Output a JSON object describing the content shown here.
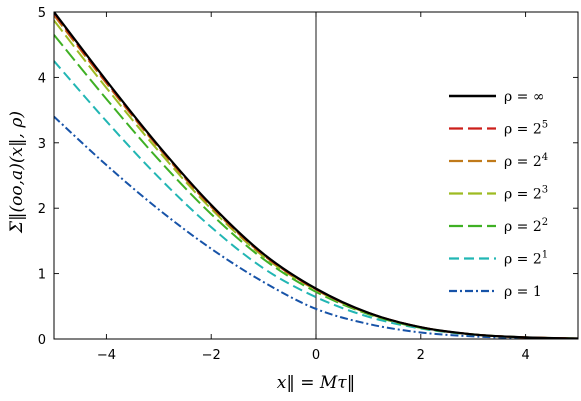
{
  "chart_data": {
    "type": "line",
    "xlabel": "x‖ = Mτ‖",
    "ylabel": "Σ‖(oo,a)(x‖, ρ)",
    "xlim": [
      -5,
      5
    ],
    "ylim": [
      0,
      5
    ],
    "xticks": [
      -4,
      -2,
      0,
      2,
      4
    ],
    "yticks": [
      0,
      1,
      2,
      3,
      4,
      5
    ],
    "grid": false,
    "legend_position": "right",
    "reference_lines": [
      {
        "orientation": "vertical",
        "x": 0
      },
      {
        "orientation": "horizontal",
        "y": 0,
        "style": "dotted"
      }
    ],
    "series": [
      {
        "name": "ρ = ∞",
        "color": "#000000",
        "dash": "solid",
        "x": [
          -5,
          -4,
          -3,
          -2,
          -1,
          0,
          1,
          2,
          3,
          4,
          5
        ],
        "y": [
          5.0,
          3.95,
          2.95,
          2.05,
          1.3,
          0.77,
          0.4,
          0.18,
          0.07,
          0.025,
          0.008
        ]
      },
      {
        "name": "ρ = 2^5",
        "color": "#cc1f1a",
        "dash": "long",
        "x": [
          -5,
          -4,
          -3,
          -2,
          -1,
          0,
          1,
          2,
          3,
          4,
          5
        ],
        "y": [
          4.98,
          3.93,
          2.94,
          2.04,
          1.29,
          0.76,
          0.4,
          0.18,
          0.07,
          0.025,
          0.008
        ]
      },
      {
        "name": "ρ = 2^4",
        "color": "#c07a1a",
        "dash": "long",
        "x": [
          -5,
          -4,
          -3,
          -2,
          -1,
          0,
          1,
          2,
          3,
          4,
          5
        ],
        "y": [
          4.95,
          3.91,
          2.92,
          2.02,
          1.28,
          0.76,
          0.4,
          0.18,
          0.07,
          0.025,
          0.008
        ]
      },
      {
        "name": "ρ = 2^3",
        "color": "#9dbb22",
        "dash": "long",
        "x": [
          -5,
          -4,
          -3,
          -2,
          -1,
          0,
          1,
          2,
          3,
          4,
          5
        ],
        "y": [
          4.87,
          3.84,
          2.87,
          1.99,
          1.26,
          0.75,
          0.39,
          0.18,
          0.07,
          0.025,
          0.008
        ]
      },
      {
        "name": "ρ = 2^2",
        "color": "#3fb024",
        "dash": "long",
        "x": [
          -5,
          -4,
          -3,
          -2,
          -1,
          0,
          1,
          2,
          3,
          4,
          5
        ],
        "y": [
          4.65,
          3.67,
          2.74,
          1.91,
          1.22,
          0.72,
          0.38,
          0.17,
          0.07,
          0.025,
          0.008
        ]
      },
      {
        "name": "ρ = 2^1",
        "color": "#22b6b4",
        "dash": "medium",
        "x": [
          -5,
          -4,
          -3,
          -2,
          -1,
          0,
          1,
          2,
          3,
          4,
          5
        ],
        "y": [
          4.25,
          3.33,
          2.47,
          1.71,
          1.08,
          0.64,
          0.34,
          0.16,
          0.065,
          0.023,
          0.007
        ]
      },
      {
        "name": "ρ = 1",
        "color": "#1753a8",
        "dash": "dashdot",
        "x": [
          -5,
          -4,
          -3,
          -2,
          -1,
          0,
          1,
          2,
          3,
          4,
          5
        ],
        "y": [
          3.4,
          2.66,
          1.98,
          1.38,
          0.87,
          0.46,
          0.23,
          0.1,
          0.04,
          0.014,
          0.004
        ]
      }
    ]
  }
}
